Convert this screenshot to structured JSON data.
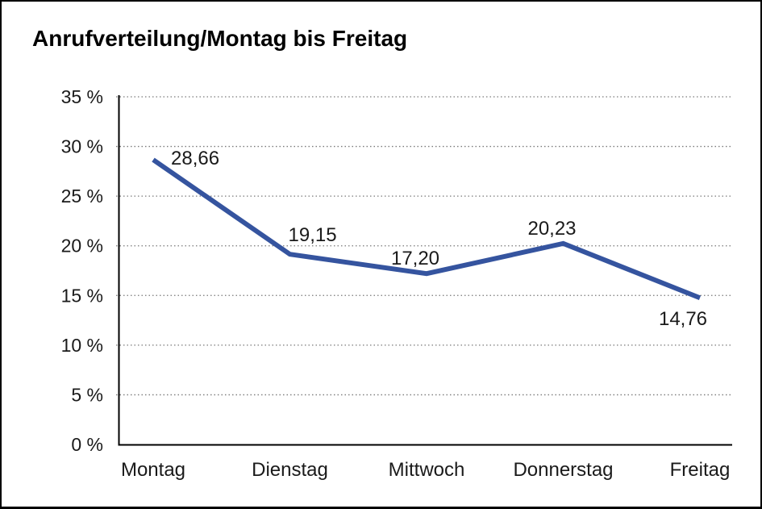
{
  "chart_data": {
    "type": "line",
    "title": "Anrufverteilung/Montag bis Freitag",
    "categories": [
      "Montag",
      "Dienstag",
      "Mittwoch",
      "Donnerstag",
      "Freitag"
    ],
    "series": [
      {
        "name": "Anrufverteilung",
        "values": [
          28.66,
          19.15,
          17.2,
          20.23,
          14.76
        ]
      }
    ],
    "point_labels": [
      "28,66",
      "19,15",
      "17,20",
      "20,23",
      "14,76"
    ],
    "yticks": [
      0,
      5,
      10,
      15,
      20,
      25,
      30,
      35
    ],
    "ytick_labels": [
      "0 %",
      "5 %",
      "10 %",
      "15 %",
      "20 %",
      "25 %",
      "30 %",
      "35 %"
    ],
    "ylim": [
      0,
      35
    ],
    "xlabel": "",
    "ylabel": "",
    "grid": "horizontal-dotted",
    "legend": "none",
    "markers": "none",
    "line_color": "#35549F",
    "axis_color": "#000000",
    "grid_color": "#7a7a7a",
    "text_color": "#1a1a1a",
    "label_positions": [
      "right-of-point",
      "above-right",
      "above",
      "above",
      "below"
    ]
  }
}
